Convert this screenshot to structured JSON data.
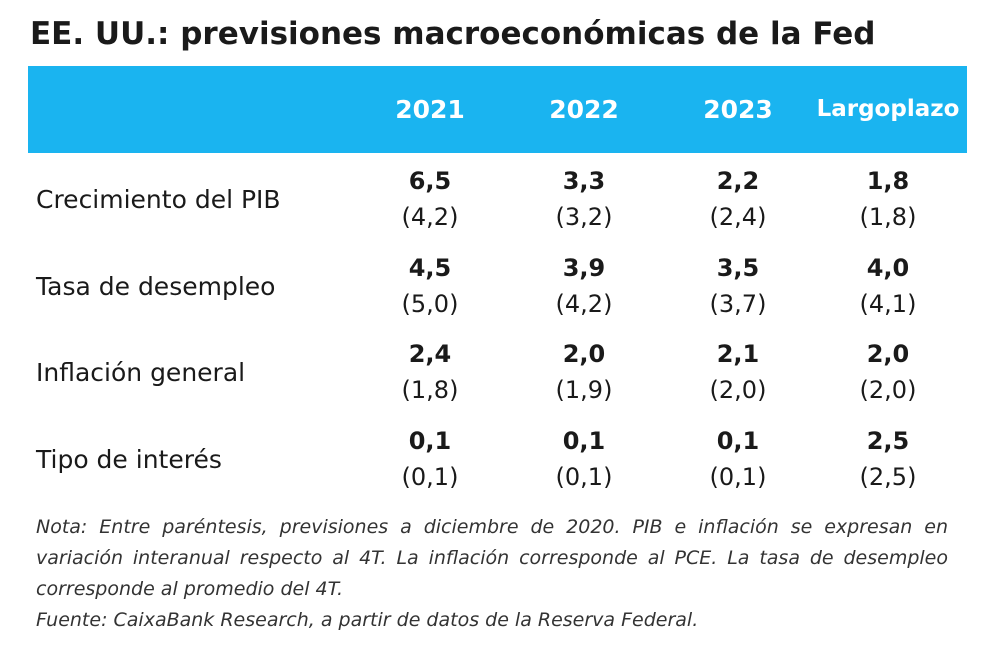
{
  "title": "EE. UU.: previsiones macroeconómicas de la Fed",
  "chart_data": {
    "type": "table",
    "columns": [
      "2021",
      "2022",
      "2023",
      "Largo plazo"
    ],
    "column_lines": [
      [
        "2021"
      ],
      [
        "2022"
      ],
      [
        "2023"
      ],
      [
        "Largo",
        "plazo"
      ]
    ],
    "rows": [
      {
        "label": "Crecimiento del PIB",
        "values": [
          "6,5",
          "3,3",
          "2,2",
          "1,8"
        ],
        "previous": [
          "(4,2)",
          "(3,2)",
          "(2,4)",
          "(1,8)"
        ]
      },
      {
        "label": "Tasa de desempleo",
        "values": [
          "4,5",
          "3,9",
          "3,5",
          "4,0"
        ],
        "previous": [
          "(5,0)",
          "(4,2)",
          "(3,7)",
          "(4,1)"
        ]
      },
      {
        "label": "Inflación general",
        "values": [
          "2,4",
          "2,0",
          "2,1",
          "2,0"
        ],
        "previous": [
          "(1,8)",
          "(1,9)",
          "(2,0)",
          "(2,0)"
        ]
      },
      {
        "label": "Tipo de interés",
        "values": [
          "0,1",
          "0,1",
          "0,1",
          "2,5"
        ],
        "previous": [
          "(0,1)",
          "(0,1)",
          "(0,1)",
          "(2,5)"
        ]
      }
    ]
  },
  "note": "Nota: Entre paréntesis, previsiones a diciembre de 2020. PIB e inflación se expresan en variación interanual respecto al 4T. La inflación corresponde al PCE. La tasa de desempleo corresponde al promedio del 4T.",
  "source": "Fuente: CaixaBank Research, a partir de datos de la Reserva Federal.",
  "colors": {
    "header": "#1ab4f0",
    "header_text": "#ffffff",
    "text": "#1a1a1a"
  }
}
